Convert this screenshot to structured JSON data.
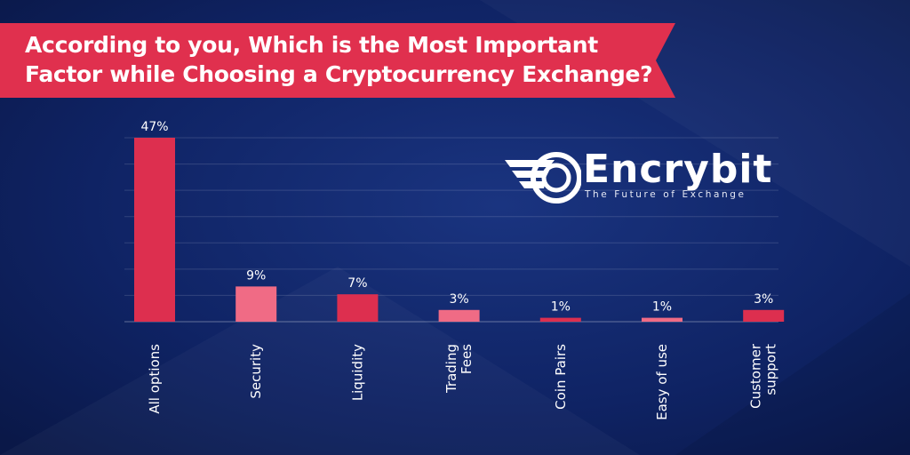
{
  "header": {
    "title_line1": "According to you, Which is the Most Important",
    "title_line2": "Factor while Choosing a Cryptocurrency Exchange?"
  },
  "logo": {
    "wordmark": "Encrybit",
    "tagline": "The Future of Exchange"
  },
  "colors": {
    "background": "#0d1f5c",
    "banner": "#e0304e",
    "bar_primary": "#dd2f4f",
    "bar_secondary": "#f06b85",
    "text": "#ffffff"
  },
  "chart_data": {
    "type": "bar",
    "categories": [
      [
        "All options"
      ],
      [
        "Security"
      ],
      [
        "Liquidity"
      ],
      [
        "Trading",
        "Fees"
      ],
      [
        "Coin Pairs"
      ],
      [
        "Easy of use"
      ],
      [
        "Customer",
        "support"
      ]
    ],
    "values": [
      47,
      9,
      7,
      3,
      1,
      1,
      3
    ],
    "value_labels": [
      "47%",
      "9%",
      "7%",
      "3%",
      "1%",
      "1%",
      "3%"
    ],
    "ylim": [
      0,
      47
    ],
    "grid": true,
    "legend": "none"
  }
}
